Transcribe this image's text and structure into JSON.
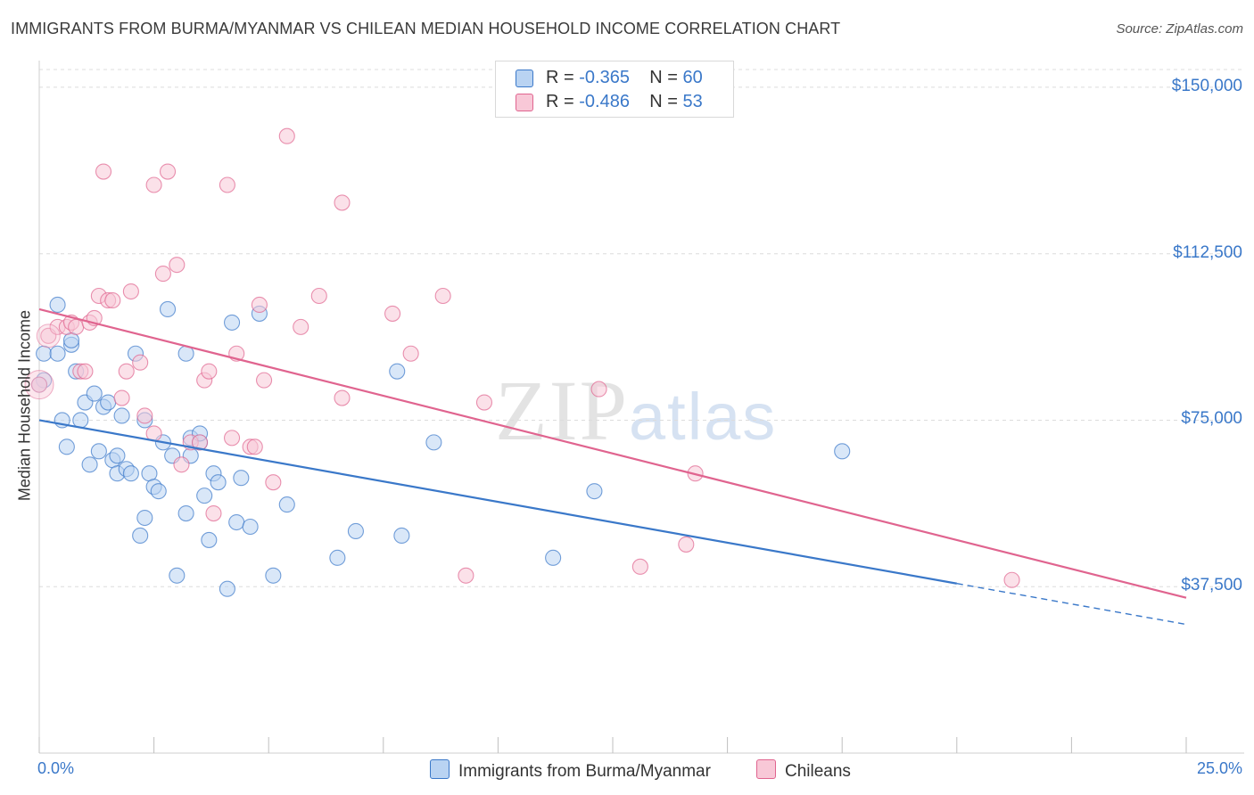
{
  "header": {
    "title": "IMMIGRANTS FROM BURMA/MYANMAR VS CHILEAN MEDIAN HOUSEHOLD INCOME CORRELATION CHART",
    "source": "Source: ZipAtlas.com"
  },
  "watermark": {
    "zip": "ZIP",
    "atlas": "atlas"
  },
  "legend": {
    "r_label": "R =",
    "n_label": "N =",
    "blue": {
      "r": "-0.365",
      "n": "60",
      "color": "#b9d3f2"
    },
    "pink": {
      "r": "-0.486",
      "n": "53",
      "color": "#f8c8d7"
    }
  },
  "bottom_legend": {
    "blue_label": "Immigrants from Burma/Myanmar",
    "pink_label": "Chileans"
  },
  "x_axis": {
    "min_label": "0.0%",
    "max_label": "25.0%"
  },
  "y_axis": {
    "title": "Median Household Income",
    "ticks": [
      {
        "value": 150000,
        "label": "$150,000"
      },
      {
        "value": 112500,
        "label": "$112,500"
      },
      {
        "value": 75000,
        "label": "$75,000"
      },
      {
        "value": 37500,
        "label": "$37,500"
      }
    ]
  },
  "chart_data": {
    "type": "scatter",
    "title": "IMMIGRANTS FROM BURMA/MYANMAR VS CHILEAN MEDIAN HOUSEHOLD INCOME CORRELATION CHART",
    "xlabel": "",
    "ylabel": "Median Household Income",
    "xlim": [
      0,
      25
    ],
    "ylim": [
      0,
      154000
    ],
    "grid": true,
    "legend": "top-center",
    "series": [
      {
        "name": "Immigrants from Burma/Myanmar",
        "color": "#3a78c9",
        "fill": "#b9d3f2",
        "r": -0.365,
        "n": 60,
        "trend": {
          "x0": 0,
          "y0": 75000,
          "x1": 25,
          "y1": 29000,
          "solid_until": 20
        },
        "points": [
          [
            0.1,
            84000
          ],
          [
            0.1,
            90000
          ],
          [
            0.4,
            101000
          ],
          [
            0.4,
            90000
          ],
          [
            0.5,
            75000
          ],
          [
            0.6,
            69000
          ],
          [
            0.7,
            92000
          ],
          [
            0.7,
            93000
          ],
          [
            0.8,
            86000
          ],
          [
            0.9,
            75000
          ],
          [
            1.0,
            79000
          ],
          [
            1.1,
            65000
          ],
          [
            1.2,
            81000
          ],
          [
            1.3,
            68000
          ],
          [
            1.4,
            78000
          ],
          [
            1.5,
            79000
          ],
          [
            1.6,
            66000
          ],
          [
            1.7,
            63000
          ],
          [
            1.7,
            67000
          ],
          [
            1.8,
            76000
          ],
          [
            1.9,
            64000
          ],
          [
            2.0,
            63000
          ],
          [
            2.1,
            90000
          ],
          [
            2.2,
            49000
          ],
          [
            2.3,
            75000
          ],
          [
            2.3,
            53000
          ],
          [
            2.4,
            63000
          ],
          [
            2.5,
            60000
          ],
          [
            2.6,
            59000
          ],
          [
            2.7,
            70000
          ],
          [
            2.8,
            100000
          ],
          [
            2.9,
            67000
          ],
          [
            3.0,
            40000
          ],
          [
            3.2,
            54000
          ],
          [
            3.2,
            90000
          ],
          [
            3.3,
            71000
          ],
          [
            3.3,
            67000
          ],
          [
            3.5,
            70000
          ],
          [
            3.5,
            72000
          ],
          [
            3.6,
            58000
          ],
          [
            3.7,
            48000
          ],
          [
            3.8,
            63000
          ],
          [
            3.9,
            61000
          ],
          [
            4.1,
            37000
          ],
          [
            4.2,
            97000
          ],
          [
            4.3,
            52000
          ],
          [
            4.4,
            62000
          ],
          [
            4.6,
            51000
          ],
          [
            4.8,
            99000
          ],
          [
            5.1,
            40000
          ],
          [
            5.4,
            56000
          ],
          [
            6.5,
            44000
          ],
          [
            6.9,
            50000
          ],
          [
            7.8,
            86000
          ],
          [
            7.9,
            49000
          ],
          [
            8.6,
            70000
          ],
          [
            11.2,
            44000
          ],
          [
            12.1,
            59000
          ],
          [
            17.5,
            68000
          ],
          [
            0.0,
            83000
          ]
        ]
      },
      {
        "name": "Chileans",
        "color": "#e0648f",
        "fill": "#f8c8d7",
        "r": -0.486,
        "n": 53,
        "trend": {
          "x0": 0,
          "y0": 100000,
          "x1": 25,
          "y1": 35000
        },
        "points": [
          [
            0.0,
            83000
          ],
          [
            0.2,
            94000
          ],
          [
            0.4,
            96000
          ],
          [
            0.6,
            96000
          ],
          [
            0.7,
            97000
          ],
          [
            0.8,
            96000
          ],
          [
            0.9,
            86000
          ],
          [
            1.0,
            86000
          ],
          [
            1.1,
            97000
          ],
          [
            1.2,
            98000
          ],
          [
            1.3,
            103000
          ],
          [
            1.4,
            131000
          ],
          [
            1.5,
            102000
          ],
          [
            1.6,
            102000
          ],
          [
            1.8,
            80000
          ],
          [
            1.9,
            86000
          ],
          [
            2.0,
            104000
          ],
          [
            2.2,
            88000
          ],
          [
            2.3,
            76000
          ],
          [
            2.5,
            72000
          ],
          [
            2.5,
            128000
          ],
          [
            2.7,
            108000
          ],
          [
            2.8,
            131000
          ],
          [
            3.0,
            110000
          ],
          [
            3.1,
            65000
          ],
          [
            3.3,
            70000
          ],
          [
            3.5,
            70000
          ],
          [
            3.6,
            84000
          ],
          [
            3.7,
            86000
          ],
          [
            3.8,
            54000
          ],
          [
            4.1,
            128000
          ],
          [
            4.2,
            71000
          ],
          [
            4.3,
            90000
          ],
          [
            4.6,
            69000
          ],
          [
            4.7,
            69000
          ],
          [
            4.8,
            101000
          ],
          [
            4.9,
            84000
          ],
          [
            5.1,
            61000
          ],
          [
            5.4,
            139000
          ],
          [
            5.7,
            96000
          ],
          [
            6.1,
            103000
          ],
          [
            6.6,
            80000
          ],
          [
            6.6,
            124000
          ],
          [
            7.7,
            99000
          ],
          [
            8.1,
            90000
          ],
          [
            8.8,
            103000
          ],
          [
            9.3,
            40000
          ],
          [
            9.7,
            79000
          ],
          [
            12.2,
            82000
          ],
          [
            13.1,
            42000
          ],
          [
            14.1,
            47000
          ],
          [
            14.3,
            63000
          ],
          [
            21.2,
            39000
          ]
        ]
      }
    ]
  }
}
